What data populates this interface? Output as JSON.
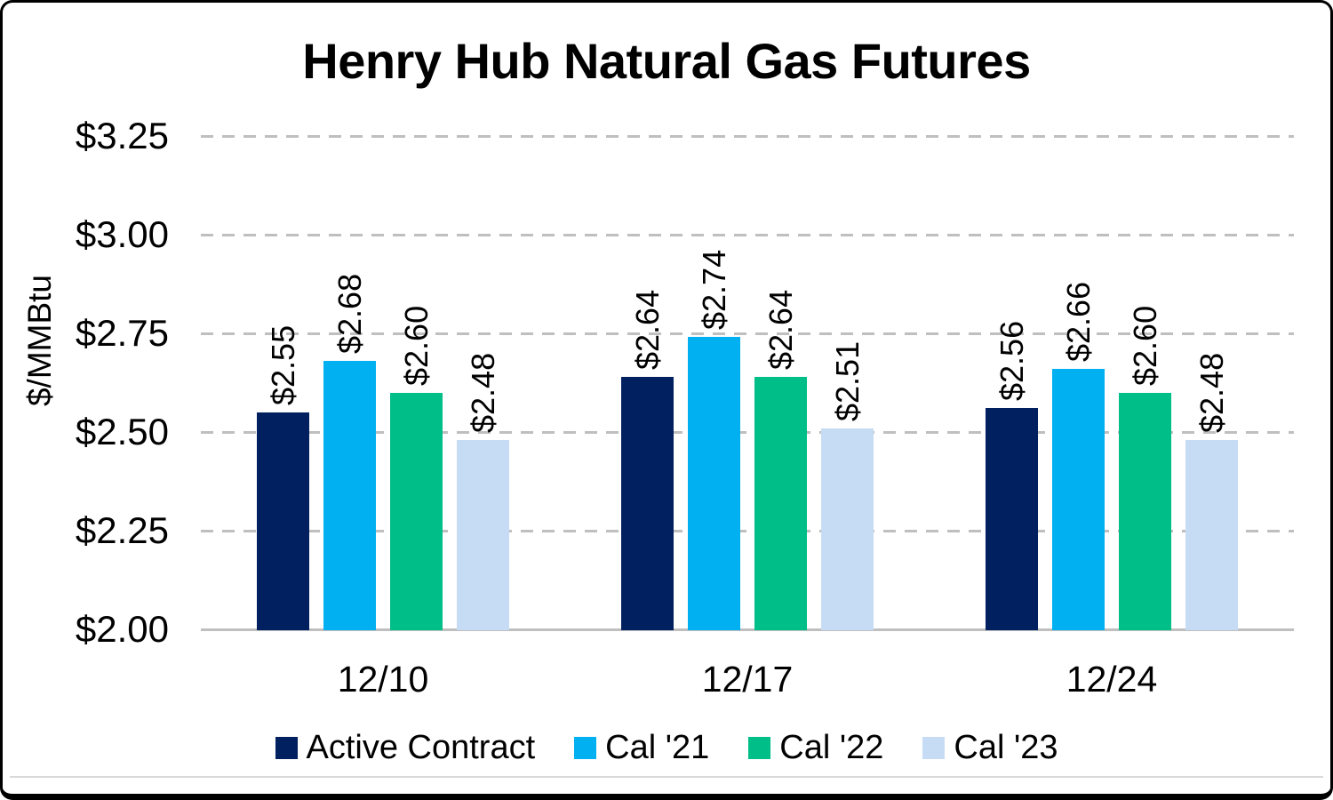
{
  "chart_data": {
    "type": "bar",
    "title": "Henry Hub Natural Gas Futures",
    "ylabel": "$/MMBtu",
    "xlabel": "",
    "categories": [
      "12/10",
      "12/17",
      "12/24"
    ],
    "series": [
      {
        "name": "Active Contract",
        "color": "#002060",
        "values": [
          2.55,
          2.64,
          2.56
        ],
        "labels": [
          "$2.55",
          "$2.64",
          "$2.56"
        ]
      },
      {
        "name": "Cal '21",
        "color": "#00B0F0",
        "values": [
          2.68,
          2.74,
          2.66
        ],
        "labels": [
          "$2.68",
          "$2.74",
          "$2.66"
        ]
      },
      {
        "name": "Cal '22",
        "color": "#00BE88",
        "values": [
          2.6,
          2.64,
          2.6
        ],
        "labels": [
          "$2.60",
          "$2.64",
          "$2.60"
        ]
      },
      {
        "name": "Cal '23",
        "color": "#C6DCF4",
        "values": [
          2.48,
          2.51,
          2.48
        ],
        "labels": [
          "$2.48",
          "$2.51",
          "$2.48"
        ]
      }
    ],
    "y_axis": {
      "min": 2.0,
      "max": 3.25,
      "tick_values": [
        3.25,
        3.0,
        2.75,
        2.5,
        2.25,
        2.0
      ],
      "ticks": [
        "$3.25",
        "$3.00",
        "$2.75",
        "$2.50",
        "$2.25",
        "$2.00"
      ]
    },
    "ylim": [
      2.0,
      3.25
    ],
    "grid": "horizontal-dashed",
    "gridline_color": "#BFBFBF",
    "axis_line_color": "#BFBFBF",
    "legend_position": "bottom"
  }
}
